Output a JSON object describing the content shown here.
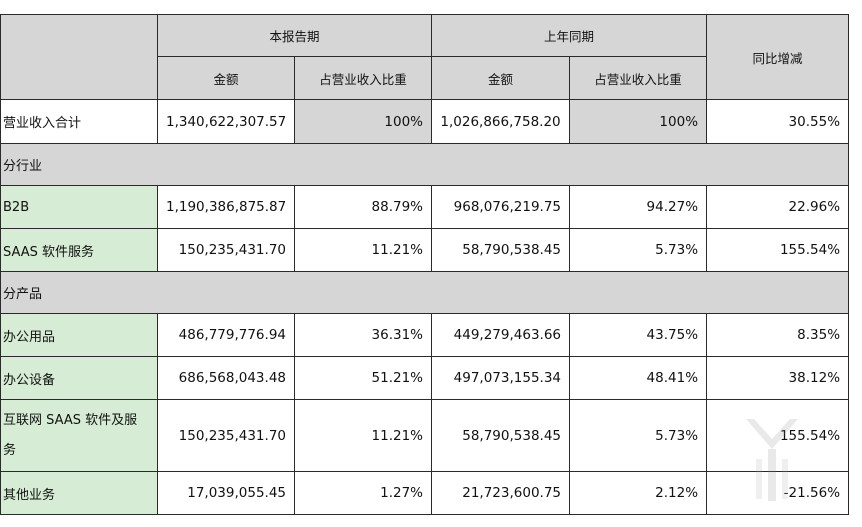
{
  "header": {
    "current_period": "本报告期",
    "prior_period": "上年同期",
    "amount": "金额",
    "ratio": "占营业收入比重",
    "yoy": "同比增减"
  },
  "total": {
    "label": "营业收入合计",
    "cur_amount": "1,340,622,307.57",
    "cur_ratio": "100%",
    "prev_amount": "1,026,866,758.20",
    "prev_ratio": "100%",
    "yoy": "30.55%"
  },
  "sections": {
    "by_industry": "分行业",
    "by_product": "分产品"
  },
  "industry_rows": [
    {
      "label": "B2B",
      "cur_amount": "1,190,386,875.87",
      "cur_ratio": "88.79%",
      "prev_amount": "968,076,219.75",
      "prev_ratio": "94.27%",
      "yoy": "22.96%"
    },
    {
      "label": "SAAS 软件服务",
      "cur_amount": "150,235,431.70",
      "cur_ratio": "11.21%",
      "prev_amount": "58,790,538.45",
      "prev_ratio": "5.73%",
      "yoy": "155.54%"
    }
  ],
  "product_rows": [
    {
      "label": "办公用品",
      "cur_amount": "486,779,776.94",
      "cur_ratio": "36.31%",
      "prev_amount": "449,279,463.66",
      "prev_ratio": "43.75%",
      "yoy": "8.35%"
    },
    {
      "label": "办公设备",
      "cur_amount": "686,568,043.48",
      "cur_ratio": "51.21%",
      "prev_amount": "497,073,155.34",
      "prev_ratio": "48.41%",
      "yoy": "38.12%"
    },
    {
      "label": "互联网 SAAS 软件及服务",
      "cur_amount": "150,235,431.70",
      "cur_ratio": "11.21%",
      "prev_amount": "58,790,538.45",
      "prev_ratio": "5.73%",
      "yoy": "155.54%"
    },
    {
      "label": "其他业务",
      "cur_amount": "17,039,055.45",
      "cur_ratio": "1.27%",
      "prev_amount": "21,723,600.75",
      "prev_ratio": "2.12%",
      "yoy": "-21.56%"
    }
  ],
  "colors": {
    "header_gray": "#d6d6d6",
    "label_green": "#d7ecd5",
    "border": "#2a2a2a"
  }
}
